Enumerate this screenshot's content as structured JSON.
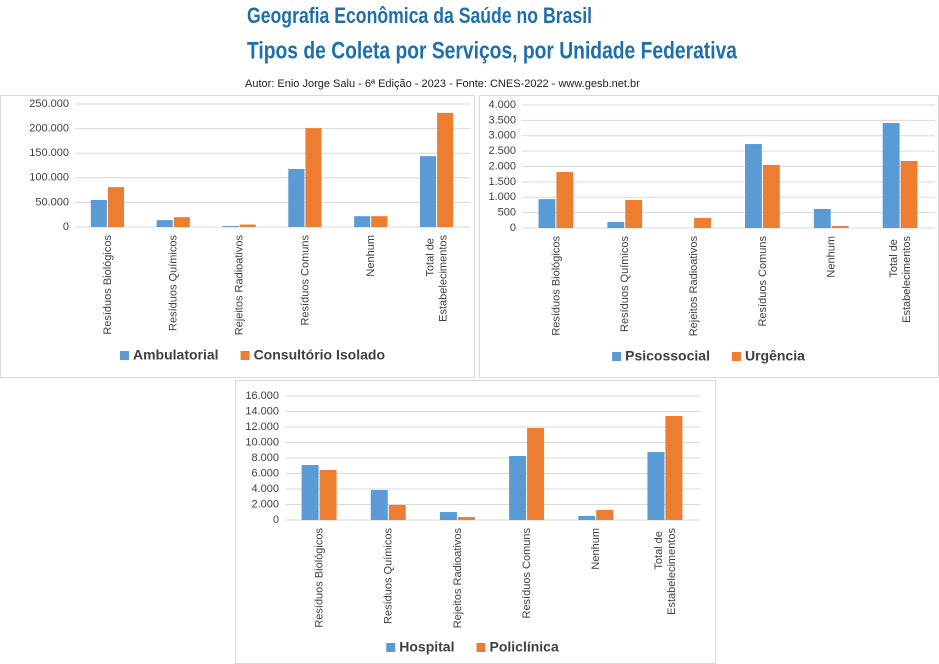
{
  "title": "Geografia Econômica da Saúde no Brasil",
  "subtitle": "Tipos de Coleta por Serviços, por Unidade Federativa",
  "author": "Autor: Enio Jorge Salu - 6ª Edição - 2023 - Fonte: CNES-2022 - www.gesb.net.br",
  "chart_data": [
    {
      "type": "bar",
      "categories": [
        "Resíduos Biológicos",
        "Resíduos Químicos",
        "Rejeitos Radioativos",
        "Resíduos Comuns",
        "Nenhum",
        "Total de Estabelecimentos"
      ],
      "series": [
        {
          "name": "Ambulatorial",
          "color": "#5b9bd5",
          "values": [
            55000,
            14000,
            2000,
            118000,
            22000,
            144000
          ]
        },
        {
          "name": "Consultório Isolado",
          "color": "#ed7d31",
          "values": [
            81000,
            20000,
            5000,
            201000,
            22000,
            232000
          ]
        }
      ],
      "ylim": [
        0,
        250000
      ],
      "yticks": [
        0,
        {
          "value": 50000,
          "label": "50.000"
        },
        {
          "value": 100000,
          "label": "100.000"
        },
        {
          "value": 150000,
          "label": "150.000"
        },
        {
          "value": 200000,
          "label": "200.000"
        },
        {
          "value": 250000,
          "label": "250.000"
        }
      ],
      "grid": true,
      "legend": "bottom"
    },
    {
      "type": "bar",
      "categories": [
        "Resíduos Biológicos",
        "Resíduos Químicos",
        "Rejeitos Radioativos",
        "Resíduos Comuns",
        "Nenhum",
        "Total de Estabelecimentos"
      ],
      "series": [
        {
          "name": "Psicossocial",
          "color": "#5b9bd5",
          "values": [
            940,
            195,
            0,
            2730,
            620,
            3415
          ]
        },
        {
          "name": "Urgência",
          "color": "#ed7d31",
          "values": [
            1820,
            910,
            325,
            2050,
            65,
            2180
          ]
        }
      ],
      "ylim": [
        0,
        4000
      ],
      "yticks": [
        0,
        500,
        {
          "value": 1000,
          "label": "1.000"
        },
        {
          "value": 1500,
          "label": "1.500"
        },
        {
          "value": 2000,
          "label": "2.000"
        },
        {
          "value": 2500,
          "label": "2.500"
        },
        {
          "value": 3000,
          "label": "3.000"
        },
        {
          "value": 3500,
          "label": "3.500"
        },
        {
          "value": 4000,
          "label": "4.000"
        }
      ],
      "grid": true,
      "legend": "bottom"
    },
    {
      "type": "bar",
      "categories": [
        "Resíduos Biológicos",
        "Resíduos Químicos",
        "Rejeitos Radioativos",
        "Resíduos Comuns",
        "Nenhum",
        "Total de Estabelecimentos"
      ],
      "series": [
        {
          "name": "Hospital",
          "color": "#5b9bd5",
          "values": [
            7100,
            3870,
            1030,
            8260,
            520,
            8770
          ]
        },
        {
          "name": "Policlínica",
          "color": "#ed7d31",
          "values": [
            6450,
            1940,
            390,
            11870,
            1290,
            13420
          ]
        }
      ],
      "ylim": [
        0,
        16000
      ],
      "yticks": [
        0,
        {
          "value": 2000,
          "label": "2.000"
        },
        {
          "value": 4000,
          "label": "4.000"
        },
        {
          "value": 6000,
          "label": "6.000"
        },
        {
          "value": 8000,
          "label": "8.000"
        },
        {
          "value": 10000,
          "label": "10.000"
        },
        {
          "value": 12000,
          "label": "12.000"
        },
        {
          "value": 14000,
          "label": "14.000"
        },
        {
          "value": 16000,
          "label": "16.000"
        }
      ],
      "grid": true,
      "legend": "bottom"
    }
  ]
}
